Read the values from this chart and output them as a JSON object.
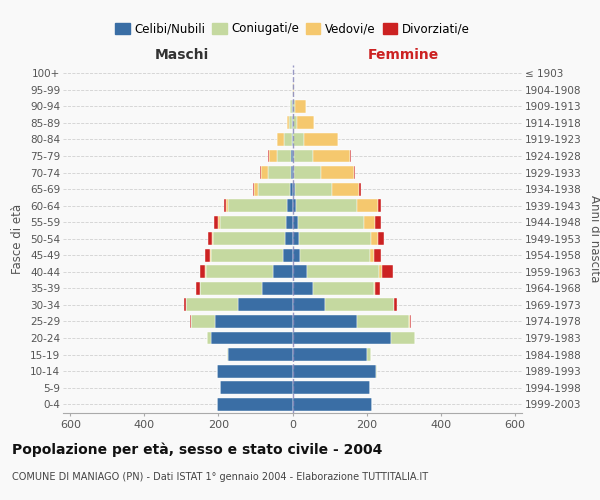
{
  "age_groups": [
    "0-4",
    "5-9",
    "10-14",
    "15-19",
    "20-24",
    "25-29",
    "30-34",
    "35-39",
    "40-44",
    "45-49",
    "50-54",
    "55-59",
    "60-64",
    "65-69",
    "70-74",
    "75-79",
    "80-84",
    "85-89",
    "90-94",
    "95-99",
    "100+"
  ],
  "birth_years": [
    "1999-2003",
    "1994-1998",
    "1989-1993",
    "1984-1988",
    "1979-1983",
    "1974-1978",
    "1969-1973",
    "1964-1968",
    "1959-1963",
    "1954-1958",
    "1949-1953",
    "1944-1948",
    "1939-1943",
    "1934-1938",
    "1929-1933",
    "1924-1928",
    "1919-1923",
    "1914-1918",
    "1909-1913",
    "1904-1908",
    "≤ 1903"
  ],
  "male_celibi": [
    205,
    195,
    205,
    175,
    220,
    210,
    148,
    82,
    54,
    26,
    20,
    18,
    14,
    6,
    5,
    3,
    2,
    2,
    1,
    0,
    0
  ],
  "male_coniugati": [
    0,
    0,
    0,
    2,
    12,
    65,
    140,
    168,
    180,
    195,
    195,
    178,
    160,
    88,
    62,
    40,
    22,
    8,
    5,
    1,
    0
  ],
  "male_vedovi": [
    0,
    0,
    0,
    0,
    0,
    0,
    0,
    0,
    2,
    2,
    2,
    4,
    6,
    10,
    18,
    20,
    18,
    4,
    2,
    0,
    0
  ],
  "male_divorziati": [
    0,
    0,
    0,
    0,
    0,
    2,
    5,
    10,
    14,
    14,
    12,
    12,
    6,
    4,
    2,
    2,
    0,
    0,
    0,
    0,
    0
  ],
  "female_nubili": [
    215,
    210,
    225,
    200,
    265,
    175,
    88,
    55,
    38,
    20,
    18,
    14,
    10,
    6,
    5,
    3,
    2,
    2,
    1,
    0,
    0
  ],
  "female_coniugate": [
    0,
    0,
    2,
    12,
    65,
    140,
    185,
    165,
    195,
    190,
    195,
    180,
    165,
    102,
    72,
    52,
    30,
    10,
    6,
    1,
    0
  ],
  "female_vedove": [
    0,
    0,
    0,
    0,
    0,
    2,
    2,
    4,
    8,
    10,
    18,
    30,
    55,
    72,
    90,
    100,
    90,
    45,
    30,
    2,
    0
  ],
  "female_divorziate": [
    0,
    0,
    0,
    0,
    0,
    4,
    8,
    12,
    30,
    18,
    16,
    15,
    10,
    4,
    2,
    2,
    0,
    0,
    0,
    0,
    0
  ],
  "color_celibi": "#3A6EA5",
  "color_coniugati": "#C5D9A0",
  "color_vedovi": "#F5C86E",
  "color_divorziati": "#CC2222",
  "xlim": 620,
  "bg_color": "#f9f9f9",
  "grid_color": "#cccccc",
  "title": "Popolazione per età, sesso e stato civile - 2004",
  "subtitle": "COMUNE DI MANIAGO (PN) - Dati ISTAT 1° gennaio 2004 - Elaborazione TUTTITALIA.IT",
  "ylabel": "Fasce di età",
  "y2label": "Anni di nascita",
  "label_maschi": "Maschi",
  "label_femmine": "Femmine",
  "legend_labels": [
    "Celibi/Nubili",
    "Coniugati/e",
    "Vedovi/e",
    "Divorziati/e"
  ]
}
